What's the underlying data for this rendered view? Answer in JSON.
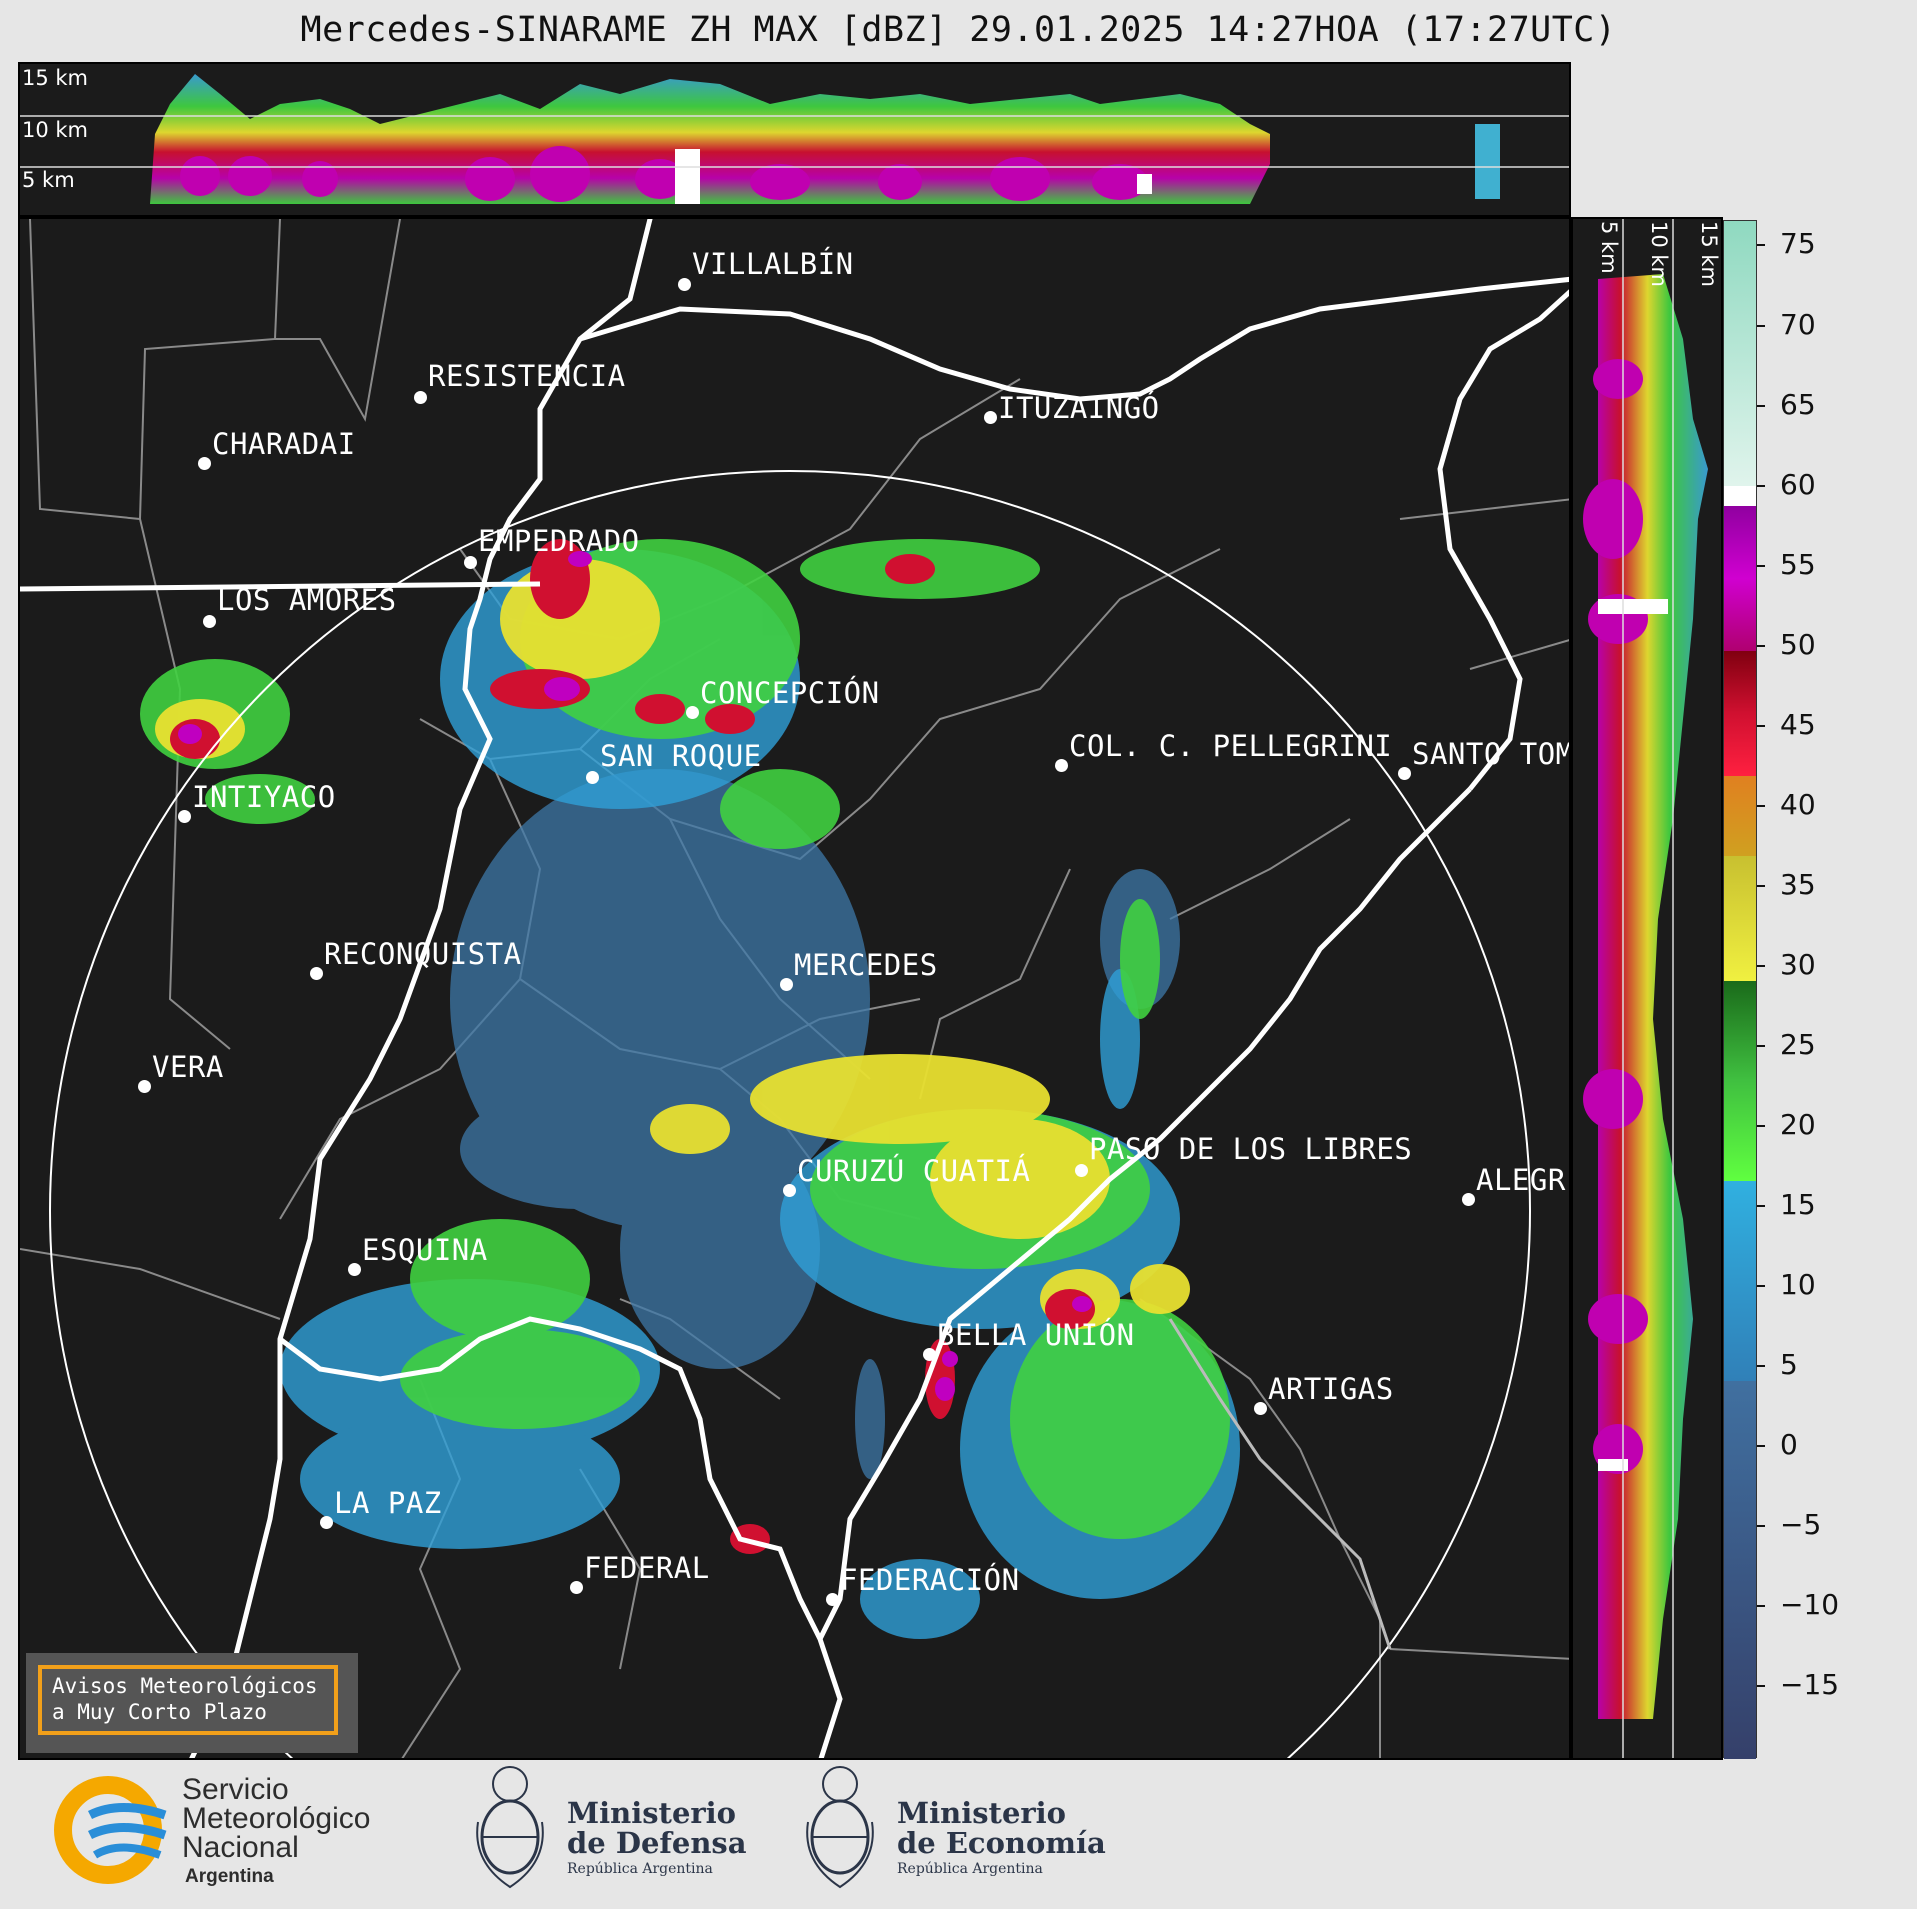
{
  "title": "Mercedes-SINARAME ZH MAX [dBZ] 29.01.2025 14:27HOA (17:27UTC)",
  "top_panel": {
    "height_labels": [
      "15 km",
      "10 km",
      "5 km"
    ]
  },
  "side_panel": {
    "height_labels": [
      "5 km",
      "10 km",
      "15 km"
    ]
  },
  "cities": [
    {
      "id": "villalbin",
      "name": "VILLALBÍN"
    },
    {
      "id": "resistencia",
      "name": "RESISTENCIA"
    },
    {
      "id": "charadai",
      "name": "CHARADAI"
    },
    {
      "id": "ituzaingo",
      "name": "ITUZAINGÓ"
    },
    {
      "id": "empedrado",
      "name": "EMPEDRADO"
    },
    {
      "id": "los-amores",
      "name": "LOS AMORES"
    },
    {
      "id": "concepcion",
      "name": "CONCEPCIÓN"
    },
    {
      "id": "san-roque",
      "name": "SAN ROQUE"
    },
    {
      "id": "col-pellegrini",
      "name": "COL. C. PELLEGRINI"
    },
    {
      "id": "santo-tome",
      "name": "SANTO TOM"
    },
    {
      "id": "intiyaco",
      "name": "INTIYACO"
    },
    {
      "id": "reconquista",
      "name": "RECONQUISTA"
    },
    {
      "id": "mercedes",
      "name": "MERCEDES"
    },
    {
      "id": "vera",
      "name": "VERA"
    },
    {
      "id": "curuzu-cuatia",
      "name": "CURUZÚ CUATIÁ"
    },
    {
      "id": "paso-de-los-libres",
      "name": "PASO DE LOS LIBRES"
    },
    {
      "id": "alegrete",
      "name": "ALEGR"
    },
    {
      "id": "esquina",
      "name": "ESQUINA"
    },
    {
      "id": "bella-union",
      "name": "BELLA UNIÓN"
    },
    {
      "id": "artigas",
      "name": "ARTIGAS"
    },
    {
      "id": "la-paz",
      "name": "LA PAZ"
    },
    {
      "id": "federal",
      "name": "FEDERAL"
    },
    {
      "id": "federacion",
      "name": "FEDERACIÓN"
    }
  ],
  "colorbar": {
    "unit": "dBZ",
    "ticks": [
      "75",
      "70",
      "65",
      "60",
      "55",
      "50",
      "45",
      "40",
      "35",
      "30",
      "25",
      "20",
      "15",
      "10",
      "5",
      "0",
      "−5",
      "−10",
      "−15"
    ],
    "colors": {
      "extreme": "#8fd9c0",
      "white": "#ffffff",
      "magenta": "#c000c0",
      "red": "#d01030",
      "orange": "#e09020",
      "yellow": "#e8e030",
      "green": "#30a030",
      "light-green": "#60e040",
      "blue": "#30a0d8",
      "steel": "#4070a0",
      "navy": "#35406a"
    }
  },
  "notice": {
    "line1": "Avisos Meteorológicos",
    "line2": "a Muy Corto Plazo"
  },
  "logos": {
    "smn": {
      "line1": "Servicio",
      "line2": "Meteorológico",
      "line3": "Nacional",
      "line4": "Argentina"
    },
    "defensa": {
      "line1": "Ministerio",
      "line2": "de Defensa",
      "line3": "República Argentina"
    },
    "economia": {
      "line1": "Ministerio",
      "line2": "de Economía",
      "line3": "República Argentina"
    }
  }
}
